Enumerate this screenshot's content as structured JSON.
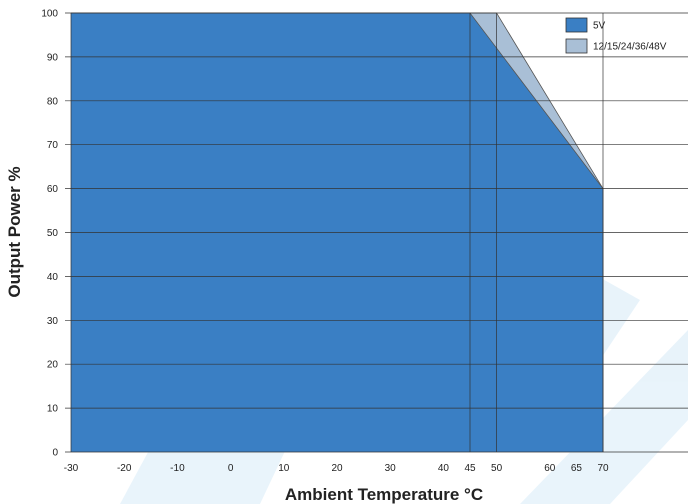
{
  "chart_data": {
    "type": "area",
    "xlabel": "Ambient Temperature  °C",
    "ylabel": "Output Power %",
    "xlim": [
      -30,
      70
    ],
    "ylim": [
      0,
      100
    ],
    "x_ticks": [
      -30,
      -20,
      -10,
      0,
      10,
      20,
      30,
      40,
      45,
      50,
      60,
      65,
      70
    ],
    "y_ticks": [
      0,
      10,
      20,
      30,
      40,
      50,
      60,
      70,
      80,
      90,
      100
    ],
    "grid": true,
    "legend_position": "top-right",
    "series": [
      {
        "name": "12/15/24/36/48V",
        "color": "#a9bfd6",
        "x": [
          -30,
          50,
          70,
          70
        ],
        "y": [
          100,
          100,
          60,
          0
        ]
      },
      {
        "name": "5V",
        "color": "#3a7fc4",
        "x": [
          -30,
          45,
          70,
          70
        ],
        "y": [
          100,
          100,
          60,
          0
        ]
      }
    ],
    "legend": [
      "5V",
      "12/15/24/36/48V"
    ]
  }
}
